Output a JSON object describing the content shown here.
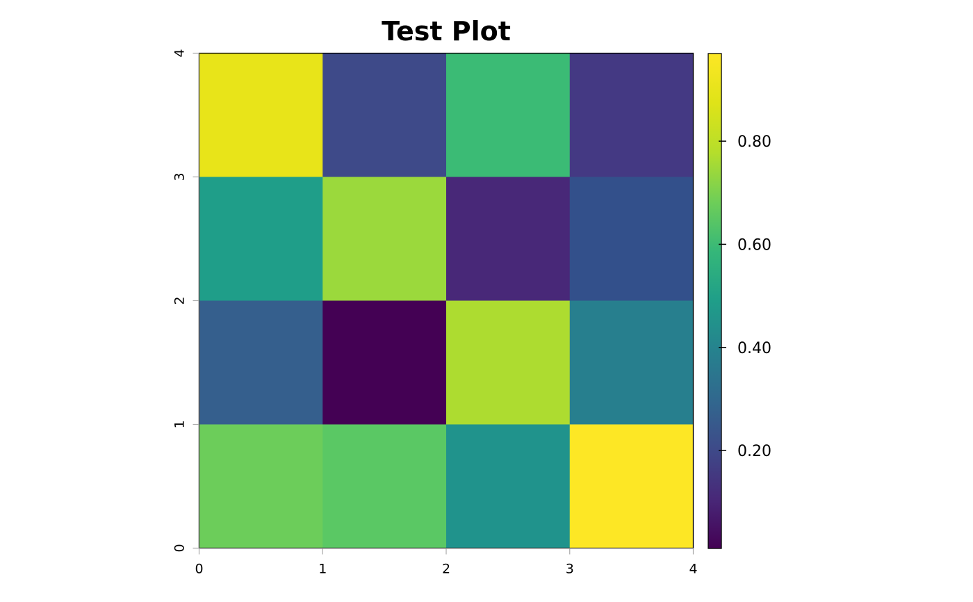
{
  "chart_data": {
    "type": "heatmap",
    "title": "Test Plot",
    "xlabel": "",
    "ylabel": "",
    "xlim": [
      0,
      4
    ],
    "ylim": [
      0,
      4
    ],
    "x_ticks": [
      "0",
      "1",
      "2",
      "3",
      "4"
    ],
    "y_ticks": [
      "0",
      "1",
      "2",
      "3",
      "4"
    ],
    "grid": false,
    "colormap": "viridis",
    "value_range": [
      0.01,
      0.97
    ],
    "colorbar": {
      "ticks": [
        0.2,
        0.4,
        0.6,
        0.8
      ],
      "labels": [
        "0.20",
        "0.40",
        "0.60",
        "0.80"
      ],
      "placement": "right"
    },
    "cells": [
      {
        "x": [
          0,
          1
        ],
        "y": [
          3,
          4
        ],
        "value": 0.93,
        "color": "#e8e419"
      },
      {
        "x": [
          1,
          2
        ],
        "y": [
          3,
          4
        ],
        "value": 0.2,
        "color": "#3e4a89"
      },
      {
        "x": [
          2,
          3
        ],
        "y": [
          3,
          4
        ],
        "value": 0.67,
        "color": "#3bbb75"
      },
      {
        "x": [
          3,
          4
        ],
        "y": [
          3,
          4
        ],
        "value": 0.17,
        "color": "#443983"
      },
      {
        "x": [
          0,
          1
        ],
        "y": [
          2,
          3
        ],
        "value": 0.55,
        "color": "#1f9e89"
      },
      {
        "x": [
          1,
          2
        ],
        "y": [
          2,
          3
        ],
        "value": 0.82,
        "color": "#9bd93c"
      },
      {
        "x": [
          2,
          3
        ],
        "y": [
          2,
          3
        ],
        "value": 0.12,
        "color": "#482878"
      },
      {
        "x": [
          3,
          4
        ],
        "y": [
          2,
          3
        ],
        "value": 0.25,
        "color": "#33508b"
      },
      {
        "x": [
          0,
          1
        ],
        "y": [
          1,
          2
        ],
        "value": 0.28,
        "color": "#355f8d"
      },
      {
        "x": [
          1,
          2
        ],
        "y": [
          1,
          2
        ],
        "value": 0.01,
        "color": "#440154"
      },
      {
        "x": [
          2,
          3
        ],
        "y": [
          1,
          2
        ],
        "value": 0.87,
        "color": "#addc30"
      },
      {
        "x": [
          3,
          4
        ],
        "y": [
          1,
          2
        ],
        "value": 0.44,
        "color": "#277f8e"
      },
      {
        "x": [
          0,
          1
        ],
        "y": [
          0,
          1
        ],
        "value": 0.76,
        "color": "#6ccd5a"
      },
      {
        "x": [
          1,
          2
        ],
        "y": [
          0,
          1
        ],
        "value": 0.73,
        "color": "#5ac864"
      },
      {
        "x": [
          2,
          3
        ],
        "y": [
          0,
          1
        ],
        "value": 0.52,
        "color": "#20938c"
      },
      {
        "x": [
          3,
          4
        ],
        "y": [
          0,
          1
        ],
        "value": 0.97,
        "color": "#fde725"
      }
    ]
  }
}
